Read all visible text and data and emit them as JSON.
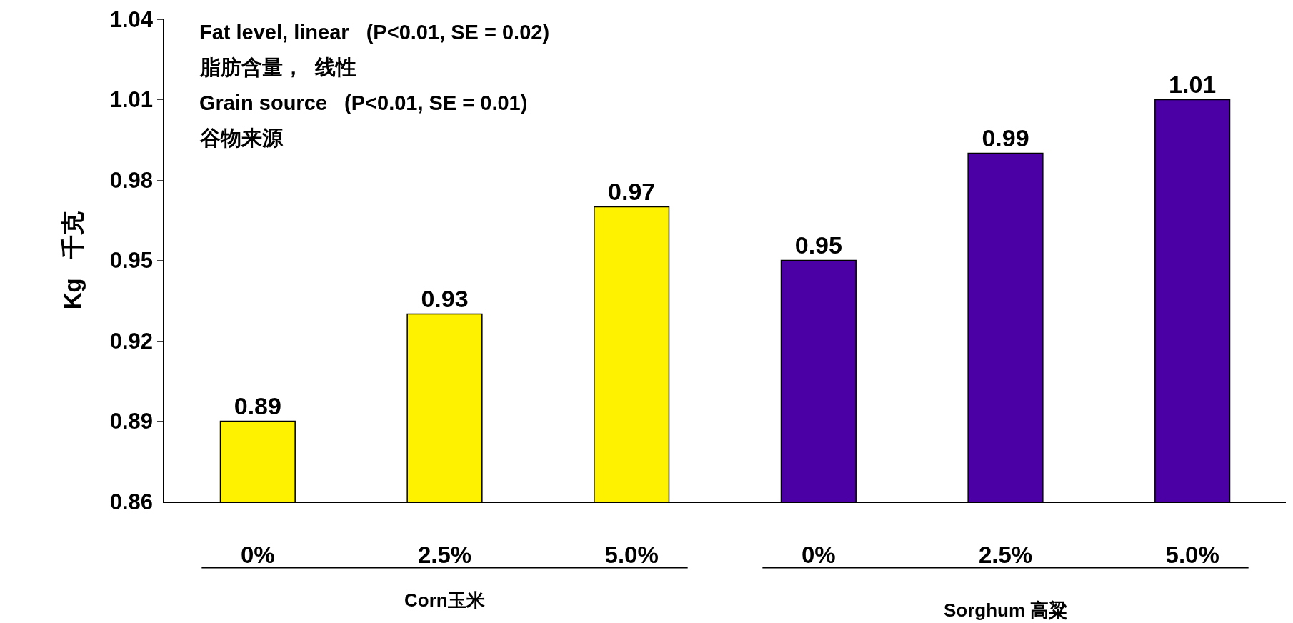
{
  "chart_data": {
    "type": "bar",
    "ylabel": "Kg   千克",
    "categories": [
      "0%",
      "2.5%",
      "5.0%",
      "0%",
      "2.5%",
      "5.0%"
    ],
    "values": [
      0.89,
      0.93,
      0.97,
      0.95,
      0.99,
      1.01
    ],
    "colors": [
      "#fff200",
      "#fff200",
      "#fff200",
      "#4b00a6",
      "#4b00a6",
      "#4b00a6"
    ],
    "ylim": [
      0.86,
      1.04
    ],
    "yticks": [
      0.86,
      0.89,
      0.92,
      0.95,
      0.98,
      1.01,
      1.04
    ],
    "data_labels": true,
    "annotations": [
      "Fat level, linear   (P<0.01, SE = 0.02)",
      "脂肪含量，  线性",
      "Grain source   (P<0.01, SE = 0.01)",
      "谷物来源",
      "Corn玉米",
      "Sorghum 高粱"
    ]
  }
}
